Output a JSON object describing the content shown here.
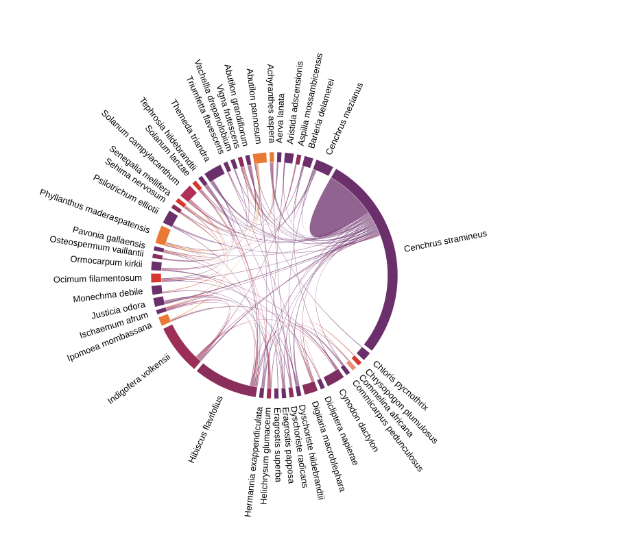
{
  "chart_data": {
    "type": "chord",
    "title": "",
    "nodes": [
      {
        "name": "Cenchrus stramineus",
        "value": 45,
        "color": "#6b2f6b"
      },
      {
        "name": "Chloris pycnothrix",
        "value": 2,
        "color": "#6b2f6b"
      },
      {
        "name": "Chrysopogon plumulosus",
        "value": 1,
        "color": "#d6382f"
      },
      {
        "name": "Commelina africana",
        "value": 1,
        "color": "#e98d7b"
      },
      {
        "name": "Commicarpus pedunculosus",
        "value": 1,
        "color": "#6b2f6b"
      },
      {
        "name": "Cynodon dactylon",
        "value": 4,
        "color": "#7a2e62"
      },
      {
        "name": "Dicliptera napierae",
        "value": 1,
        "color": "#6b2f6b"
      },
      {
        "name": "Digitaria macroblephara",
        "value": 3,
        "color": "#8a2f5c"
      },
      {
        "name": "Dyschoriste hildebrandtii",
        "value": 1,
        "color": "#6b2f6b"
      },
      {
        "name": "Dyschoriste radicans",
        "value": 1,
        "color": "#8a2f5c"
      },
      {
        "name": "Eragrostis papposa",
        "value": 1,
        "color": "#6b2f6b"
      },
      {
        "name": "Eragrostis superba",
        "value": 1,
        "color": "#6b2f6b"
      },
      {
        "name": "Helichrysum glumaceum",
        "value": 1,
        "color": "#9b2f57"
      },
      {
        "name": "Hermannia exappendiculata",
        "value": 1,
        "color": "#6b2f6b"
      },
      {
        "name": "Hibiscus flavifolius",
        "value": 14,
        "color": "#8a2f5c"
      },
      {
        "name": "Indigofera volkensii",
        "value": 11,
        "color": "#9b2f57"
      },
      {
        "name": "Ipomoea mombassana",
        "value": 2,
        "color": "#e87a36"
      },
      {
        "name": "Ischaemum afrum",
        "value": 1,
        "color": "#6b2f6b"
      },
      {
        "name": "Justicia odora",
        "value": 2,
        "color": "#6b2f6b"
      },
      {
        "name": "Monechma debile",
        "value": 2,
        "color": "#6b2f6b"
      },
      {
        "name": "Ocimum filamentosum",
        "value": 2,
        "color": "#d6382f"
      },
      {
        "name": "Ormocarpum kirkii",
        "value": 2,
        "color": "#6b2f6b"
      },
      {
        "name": "Osteospermum vaillantii",
        "value": 1,
        "color": "#8a2f5c"
      },
      {
        "name": "Pavonia gallaensis",
        "value": 1,
        "color": "#6b2f6b"
      },
      {
        "name": "Phyllanthus maderaspatensis",
        "value": 4,
        "color": "#e87a36"
      },
      {
        "name": "Psilotrichum elliotii",
        "value": 3,
        "color": "#6b2f6b"
      },
      {
        "name": "Sehima nervosum",
        "value": 1,
        "color": "#8a2f5c"
      },
      {
        "name": "Senegalia mellifera",
        "value": 1,
        "color": "#d6382f"
      },
      {
        "name": "Solanum campylacanthum",
        "value": 3,
        "color": "#b0305a"
      },
      {
        "name": "Solanum lanzae",
        "value": 1,
        "color": "#d6382f"
      },
      {
        "name": "Tephrosia hildebrandtii",
        "value": 1,
        "color": "#6b2f6b"
      },
      {
        "name": "Themeda triandra",
        "value": 4,
        "color": "#6b2f6b"
      },
      {
        "name": "Triumfetta flavescens",
        "value": 1,
        "color": "#6b2f6b"
      },
      {
        "name": "Vachellia drepanolobium",
        "value": 1,
        "color": "#6b2f6b"
      },
      {
        "name": "Vigna frutescens",
        "value": 1,
        "color": "#8a2f5c"
      },
      {
        "name": "Abutilon grandiflorum",
        "value": 1,
        "color": "#6b2f6b"
      },
      {
        "name": "Abutilon pannosum",
        "value": 3,
        "color": "#e87a36"
      },
      {
        "name": "Achyranthes aspera",
        "value": 1,
        "color": "#e87a36"
      },
      {
        "name": "Aerva lanata",
        "value": 1,
        "color": "#6b2f6b"
      },
      {
        "name": "Aristida adscensionis",
        "value": 2,
        "color": "#6b2f6b"
      },
      {
        "name": "Aspilia mossambicensis",
        "value": 1,
        "color": "#8a2f5c"
      },
      {
        "name": "Barleria delamerei",
        "value": 2,
        "color": "#6b2f6b"
      },
      {
        "name": "Cenchrus mezianus",
        "value": 4,
        "color": "#6b2f6b"
      }
    ]
  }
}
